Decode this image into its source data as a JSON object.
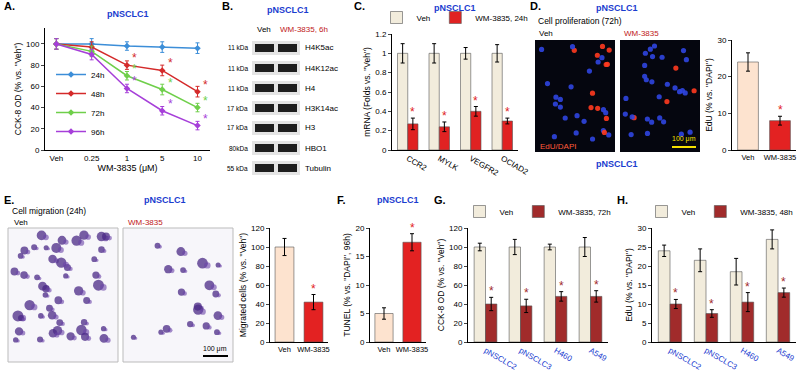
{
  "chart_data": [
    {
      "type": "line",
      "panel": "A.",
      "title": "pNSCLC1",
      "x_label": "WM-3835 (μM)",
      "y_label": "CCK-8 OD (% vs. \"Veh\")",
      "categories": [
        "Veh",
        "0.25",
        "1",
        "5",
        "10"
      ],
      "series": [
        {
          "name": "24h",
          "color": "#3c8ed8",
          "values": [
            100,
            100,
            98,
            97,
            96
          ],
          "error": [
            5,
            5,
            4,
            5,
            5
          ],
          "stars": [
            null,
            null,
            null,
            null,
            null
          ]
        },
        {
          "name": "48h",
          "color": "#d42a2a",
          "values": [
            100,
            97,
            80,
            75,
            55
          ],
          "error": [
            5,
            5,
            4,
            5,
            5
          ],
          "stars": [
            null,
            null,
            "*",
            "*",
            "*"
          ]
        },
        {
          "name": "72h",
          "color": "#6fcf4a",
          "values": [
            100,
            93,
            70,
            57,
            40
          ],
          "error": [
            5,
            5,
            4,
            5,
            4
          ],
          "stars": [
            null,
            null,
            "*",
            "*",
            "*"
          ]
        },
        {
          "name": "96h",
          "color": "#a63fd9",
          "values": [
            100,
            90,
            58,
            37,
            23
          ],
          "error": [
            5,
            5,
            4,
            4,
            4
          ],
          "stars": [
            null,
            null,
            "*",
            "*",
            "*"
          ]
        }
      ],
      "ylim": [
        0,
        115
      ],
      "yticks": [
        0,
        20,
        40,
        60,
        80,
        100
      ],
      "marker": "diamond",
      "line_style": "solid",
      "legend": "lower left",
      "grid": false
    },
    {
      "type": "bar",
      "panel": "C.",
      "title": "pNSCLC1",
      "y_label": "mRNA (Folds vs. \"Veh\")",
      "categories": [
        "CCR2",
        "MYLK",
        "VEGFR2",
        "OCIAD2"
      ],
      "series": [
        {
          "name": "Veh",
          "color": "#f2ecdc",
          "values": [
            1,
            1,
            1,
            1
          ],
          "error": [
            0.1,
            0.1,
            0.06,
            0.09
          ],
          "stars": [
            null,
            null,
            null,
            null
          ]
        },
        {
          "name": "WM-3835, 24h",
          "color": "#e02222",
          "values": [
            0.27,
            0.24,
            0.4,
            0.3
          ],
          "error": [
            0.06,
            0.05,
            0.05,
            0.03
          ],
          "stars": [
            "*",
            "*",
            "*",
            "*"
          ]
        }
      ],
      "ylim": [
        0,
        1.2
      ],
      "yticks": [
        0,
        0.2,
        0.4,
        0.6,
        0.8,
        1,
        1.2
      ],
      "legend": "top",
      "grid": false
    },
    {
      "type": "bar",
      "y_label": "EdU (% vs. \"DAPI\")",
      "categories": [
        "Veh",
        "WM-3835"
      ],
      "values": [
        24,
        8
      ],
      "error": [
        2.5,
        1.2
      ],
      "stars": [
        null,
        "*"
      ],
      "colors": [
        "#fde3cf",
        "#e32222"
      ],
      "ylim": [
        0,
        30
      ],
      "yticks": [
        0,
        10,
        20,
        30
      ],
      "grid": false
    },
    {
      "type": "bar",
      "y_label": "Migrated cells (% vs. \"Veh\")",
      "categories": [
        "Veh",
        "WM-3835"
      ],
      "values": [
        100,
        42
      ],
      "error": [
        9,
        8
      ],
      "stars": [
        null,
        "*"
      ],
      "colors": [
        "#fde3cf",
        "#e32222"
      ],
      "ylim": [
        0,
        120
      ],
      "yticks": [
        0,
        20,
        40,
        60,
        80,
        100,
        120
      ],
      "grid": false
    },
    {
      "type": "bar",
      "panel": "F.",
      "title": "pNSCLC1",
      "y_label": "TUNEL (% vs. \"DAPI\", 96h)",
      "categories": [
        "Veh",
        "WM-3835"
      ],
      "values": [
        5,
        17.5
      ],
      "error": [
        1,
        1.5
      ],
      "stars": [
        null,
        "*"
      ],
      "colors": [
        "#fde3cf",
        "#e32222"
      ],
      "ylim": [
        0,
        20
      ],
      "yticks": [
        0,
        5,
        10,
        15,
        20
      ],
      "grid": false
    },
    {
      "type": "bar",
      "panel": "G.",
      "y_label": "CCK-8 OD (% vs. \"Veh\")",
      "categories": [
        "pNSCLC2",
        "pNSCLC3",
        "H460",
        "A549"
      ],
      "series": [
        {
          "name": "Veh",
          "color": "#f2ecdc",
          "values": [
            100,
            100,
            100,
            100
          ],
          "error": [
            4,
            8,
            3,
            10
          ],
          "stars": [
            null,
            null,
            null,
            null
          ]
        },
        {
          "name": "WM-3835, 72h",
          "color": "#a12b2b",
          "values": [
            40,
            38,
            48,
            48
          ],
          "error": [
            7,
            7,
            5,
            6
          ],
          "stars": [
            "*",
            "*",
            "*",
            "*"
          ]
        }
      ],
      "ylim": [
        0,
        120
      ],
      "yticks": [
        0,
        20,
        40,
        60,
        80,
        100,
        120
      ],
      "legend": "top",
      "grid": false
    },
    {
      "type": "bar",
      "panel": "H.",
      "y_label": "EdU (% vs. \"DAPI\")",
      "categories": [
        "pNSCLC2",
        "pNSCLC3",
        "H460",
        "A549"
      ],
      "series": [
        {
          "name": "Veh",
          "color": "#f2ecdc",
          "values": [
            24,
            21.5,
            18.5,
            27
          ],
          "error": [
            1.5,
            3,
            3.5,
            2.5
          ],
          "stars": [
            null,
            null,
            null,
            null
          ]
        },
        {
          "name": "WM-3835, 48h",
          "color": "#a12b2b",
          "values": [
            10,
            7.5,
            10.5,
            13
          ],
          "error": [
            1.2,
            1,
            2.5,
            1.2
          ],
          "stars": [
            "*",
            "*",
            "*",
            "*"
          ]
        }
      ],
      "ylim": [
        0,
        30
      ],
      "yticks": [
        0,
        5,
        10,
        15,
        20,
        25,
        30
      ],
      "legend": "top",
      "grid": false
    }
  ],
  "blot": {
    "panel": "B.",
    "title": "pNSCLC1",
    "lanes": [
      "Veh",
      "WM-3835, 6h"
    ],
    "rows": [
      {
        "size": "11 kDa",
        "label": "H4K5ac"
      },
      {
        "size": "11 kDa",
        "label": "H4K12ac"
      },
      {
        "size": "11 kDa",
        "label": "H4"
      },
      {
        "size": "17 kDa",
        "label": "H3K14ac"
      },
      {
        "size": "17 kDa",
        "label": "H3"
      },
      {
        "size": "80kDa",
        "label": "HBO1"
      },
      {
        "size": "55 kDa",
        "label": "Tubulin"
      }
    ]
  },
  "proliferation_images": {
    "panel": "D.",
    "title": "pNSCLC1",
    "heading": "Cell proliferation (72h)",
    "labels": [
      "Veh",
      "WM-3835"
    ],
    "stain": "EdU/DAPI",
    "scale": "100 μm",
    "caption": "pNSCLC1"
  },
  "migration_images": {
    "panel": "E.",
    "title": "pNSCLC1",
    "heading": "Cell migration (24h)",
    "labels": [
      "Veh",
      "WM-3835"
    ],
    "scale": "100 μm"
  }
}
